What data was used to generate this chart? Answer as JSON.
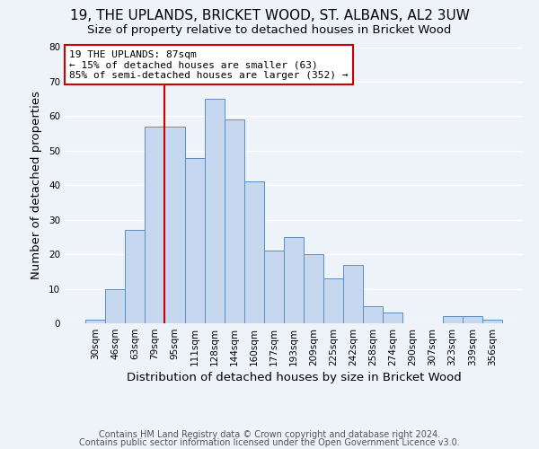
{
  "title": "19, THE UPLANDS, BRICKET WOOD, ST. ALBANS, AL2 3UW",
  "subtitle": "Size of property relative to detached houses in Bricket Wood",
  "xlabel": "Distribution of detached houses by size in Bricket Wood",
  "ylabel": "Number of detached properties",
  "bar_labels": [
    "30sqm",
    "46sqm",
    "63sqm",
    "79sqm",
    "95sqm",
    "111sqm",
    "128sqm",
    "144sqm",
    "160sqm",
    "177sqm",
    "193sqm",
    "209sqm",
    "225sqm",
    "242sqm",
    "258sqm",
    "274sqm",
    "290sqm",
    "307sqm",
    "323sqm",
    "339sqm",
    "356sqm"
  ],
  "bar_values": [
    1,
    10,
    27,
    57,
    57,
    48,
    65,
    59,
    41,
    21,
    25,
    20,
    13,
    17,
    5,
    3,
    0,
    0,
    2,
    2,
    1
  ],
  "bar_color": "#c5d8f0",
  "bar_edgecolor": "#5a8fc2",
  "bar_width": 1.0,
  "ylim": [
    0,
    80
  ],
  "yticks": [
    0,
    10,
    20,
    30,
    40,
    50,
    60,
    70,
    80
  ],
  "annotation_title": "19 THE UPLANDS: 87sqm",
  "annotation_line1": "← 15% of detached houses are smaller (63)",
  "annotation_line2": "85% of semi-detached houses are larger (352) →",
  "annotation_box_facecolor": "#ffffff",
  "annotation_box_edgecolor": "#cc0000",
  "vertical_line_x": 3.5,
  "vertical_line_color": "#cc0000",
  "footer1": "Contains HM Land Registry data © Crown copyright and database right 2024.",
  "footer2": "Contains public sector information licensed under the Open Government Licence v3.0.",
  "background_color": "#eef2f9",
  "grid_color": "#ffffff",
  "title_fontsize": 11,
  "subtitle_fontsize": 9.5,
  "axis_label_fontsize": 9.5,
  "tick_fontsize": 7.5,
  "annotation_fontsize": 8,
  "footer_fontsize": 7
}
